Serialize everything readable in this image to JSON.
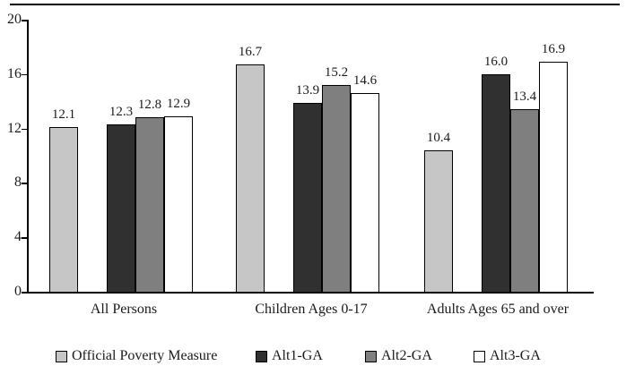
{
  "figure": {
    "background": "#ffffff",
    "text_color": "#1a1a1a",
    "axis_color": "#000000"
  },
  "chart_data": {
    "type": "bar",
    "title": "",
    "xlabel": "",
    "ylabel": "",
    "categories": [
      "All Persons",
      "Children Ages 0-17",
      "Adults Ages 65 and over"
    ],
    "series": [
      {
        "name": "Official Poverty Measure",
        "color": "#c6c6c6",
        "values": [
          12.1,
          16.7,
          10.4
        ]
      },
      {
        "name": "Alt1-GA",
        "color": "#303030",
        "values": [
          12.3,
          13.9,
          16.0
        ]
      },
      {
        "name": "Alt2-GA",
        "color": "#7f7f7f",
        "values": [
          12.8,
          15.2,
          13.4
        ]
      },
      {
        "name": "Alt3-GA",
        "color": "#ffffff",
        "values": [
          12.9,
          14.6,
          16.9
        ]
      }
    ],
    "value_labels_decimals": 1,
    "yticks": [
      0,
      4,
      8,
      12,
      16,
      20
    ],
    "ylim": [
      0,
      20
    ],
    "grid": false,
    "legend_position": "bottom",
    "bar_border_color": "#000000"
  }
}
